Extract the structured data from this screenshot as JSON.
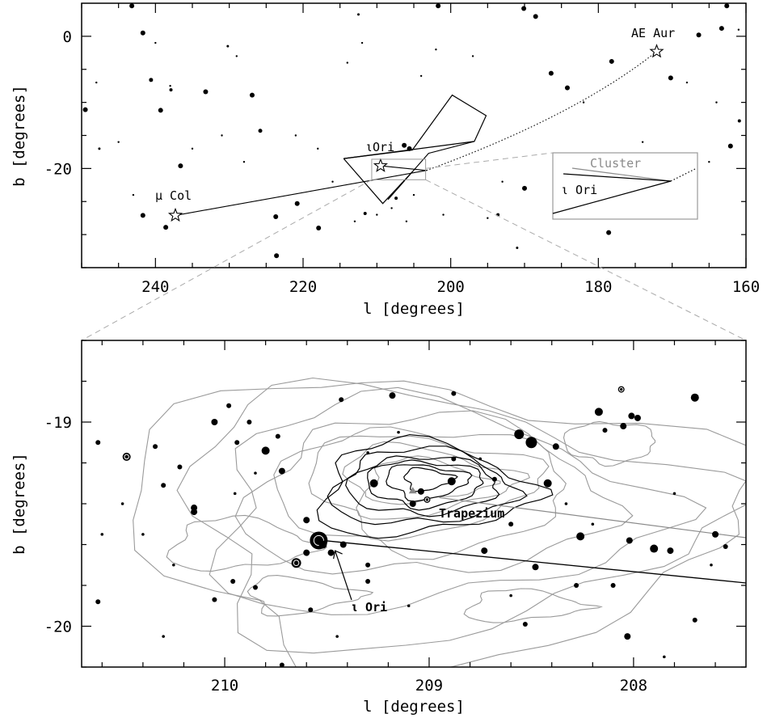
{
  "chart_data": [
    {
      "type": "scatter",
      "panel": "top",
      "xlabel": "l [degrees]",
      "ylabel": "b [degrees]",
      "xlim": [
        250,
        160
      ],
      "ylim": [
        -35,
        5
      ],
      "xticks": [
        240,
        220,
        200,
        180,
        160
      ],
      "yticks": [
        0,
        -20
      ],
      "labels": {
        "ae_aur": "AE Aur",
        "mu_col": "μ Col",
        "iota_ori": "ιOri",
        "inset_cluster": "Cluster",
        "inset_iota_ori": "ι Ori"
      },
      "runaway_stars": [
        {
          "name": "AE Aur",
          "l": 172.1,
          "b": -2.3
        },
        {
          "name": "μ Col",
          "l": 237.3,
          "b": -27.1
        },
        {
          "name": "ιOri",
          "l": 209.5,
          "b": -19.6
        }
      ],
      "orion_constellation": [
        {
          "l": 214.5,
          "b": -18.5
        },
        {
          "l": 205.2,
          "b": -17.2
        },
        {
          "l": 199.8,
          "b": -8.9
        },
        {
          "l": 195.2,
          "b": -12.0
        },
        {
          "l": 196.8,
          "b": -15.9
        },
        {
          "l": 203.0,
          "b": -17.7
        },
        {
          "l": 205.2,
          "b": -20.5
        },
        {
          "l": 209.2,
          "b": -25.3
        },
        {
          "l": 214.5,
          "b": -18.5
        }
      ],
      "stars": [
        {
          "l": 243.2,
          "b": 4.6,
          "s": 3
        },
        {
          "l": 241.7,
          "b": 0.5,
          "s": 3
        },
        {
          "l": 240.6,
          "b": -6.6,
          "s": 2.5
        },
        {
          "l": 239.3,
          "b": -11.2,
          "s": 3
        },
        {
          "l": 237.9,
          "b": -8.1,
          "s": 2
        },
        {
          "l": 236.6,
          "b": -19.6,
          "s": 3
        },
        {
          "l": 230.2,
          "b": -1.5,
          "s": 1.5
        },
        {
          "l": 226.9,
          "b": -8.9,
          "s": 3
        },
        {
          "l": 225.8,
          "b": -14.3,
          "s": 2.5
        },
        {
          "l": 223.6,
          "b": -33.2,
          "s": 3
        },
        {
          "l": 223.7,
          "b": -27.3,
          "s": 3
        },
        {
          "l": 220.8,
          "b": -25.3,
          "s": 3
        },
        {
          "l": 217.9,
          "b": -29.0,
          "s": 3
        },
        {
          "l": 212.5,
          "b": 3.3,
          "s": 1.5
        },
        {
          "l": 201.7,
          "b": 4.6,
          "s": 3
        },
        {
          "l": 190.1,
          "b": 4.2,
          "s": 3
        },
        {
          "l": 188.5,
          "b": 3.0,
          "s": 3
        },
        {
          "l": 186.4,
          "b": -5.6,
          "s": 3
        },
        {
          "l": 184.2,
          "b": -7.8,
          "s": 3
        },
        {
          "l": 190.0,
          "b": -23.0,
          "s": 3
        },
        {
          "l": 178.6,
          "b": -29.7,
          "s": 3
        },
        {
          "l": 178.2,
          "b": -3.8,
          "s": 3
        },
        {
          "l": 170.2,
          "b": -6.3,
          "s": 3
        },
        {
          "l": 166.4,
          "b": 0.2,
          "s": 3
        },
        {
          "l": 163.3,
          "b": 1.2,
          "s": 3
        },
        {
          "l": 162.6,
          "b": 4.6,
          "s": 3
        },
        {
          "l": 162.1,
          "b": -16.6,
          "s": 3
        },
        {
          "l": 249.5,
          "b": -11.1,
          "s": 3
        },
        {
          "l": 238.6,
          "b": -28.9,
          "s": 3
        },
        {
          "l": 241.7,
          "b": -27.1,
          "s": 3
        },
        {
          "l": 205.6,
          "b": -17.0,
          "s": 3
        },
        {
          "l": 206.3,
          "b": -16.5,
          "s": 3
        },
        {
          "l": 207.4,
          "b": -24.5,
          "s": 2
        },
        {
          "l": 211.6,
          "b": -26.8,
          "s": 2
        },
        {
          "l": 193.6,
          "b": -27.0,
          "s": 2
        },
        {
          "l": 191.0,
          "b": -32.0,
          "s": 1.5
        },
        {
          "l": 160.9,
          "b": -12.8,
          "s": 2
        },
        {
          "l": 233.2,
          "b": -8.4,
          "s": 3
        },
        {
          "l": 247.6,
          "b": -17.0,
          "s": 1.5
        }
      ],
      "inset_box": {
        "l1": 186.1,
        "b1": -18.1,
        "l2": 167.5,
        "b2": -27.8
      }
    },
    {
      "type": "scatter",
      "panel": "bottom",
      "xlabel": "l [degrees]",
      "ylabel": "b [degrees]",
      "xlim": [
        210.7,
        207.45
      ],
      "ylim": [
        -20.2,
        -18.6
      ],
      "xticks": [
        210,
        209,
        208
      ],
      "yticks": [
        -19,
        -20
      ],
      "labels": {
        "trapezium": "Trapezium",
        "iota_ori": "ι Ori"
      },
      "iota_ori_position": {
        "l": 209.52,
        "b": -19.58
      },
      "trapezium_position": {
        "l": 209.01,
        "b": -19.38
      },
      "stars": [
        {
          "l": 210.48,
          "b": -19.17,
          "s": 5,
          "ring": true
        },
        {
          "l": 210.05,
          "b": -19.0,
          "s": 4
        },
        {
          "l": 210.78,
          "b": -19.32,
          "s": 4
        },
        {
          "l": 209.98,
          "b": -18.92,
          "s": 3
        },
        {
          "l": 209.88,
          "b": -19.0,
          "s": 3
        },
        {
          "l": 209.8,
          "b": -19.14,
          "s": 5
        },
        {
          "l": 209.72,
          "b": -19.24,
          "s": 4
        },
        {
          "l": 209.74,
          "b": -19.07,
          "s": 3
        },
        {
          "l": 209.43,
          "b": -18.89,
          "s": 3
        },
        {
          "l": 209.18,
          "b": -18.87,
          "s": 4
        },
        {
          "l": 208.88,
          "b": -18.86,
          "s": 3
        },
        {
          "l": 208.56,
          "b": -19.06,
          "s": 6
        },
        {
          "l": 208.5,
          "b": -19.1,
          "s": 7
        },
        {
          "l": 208.38,
          "b": -19.12,
          "s": 4
        },
        {
          "l": 208.17,
          "b": -18.95,
          "s": 5
        },
        {
          "l": 208.06,
          "b": -18.84,
          "s": 4,
          "ring": true
        },
        {
          "l": 207.7,
          "b": -18.88,
          "s": 5
        },
        {
          "l": 208.05,
          "b": -19.02,
          "s": 4
        },
        {
          "l": 208.01,
          "b": -18.97,
          "s": 4
        },
        {
          "l": 207.98,
          "b": -18.98,
          "s": 4
        },
        {
          "l": 208.14,
          "b": -19.04,
          "s": 3
        },
        {
          "l": 208.42,
          "b": -19.3,
          "s": 5
        },
        {
          "l": 208.68,
          "b": -19.28,
          "s": 3
        },
        {
          "l": 208.89,
          "b": -19.29,
          "s": 5
        },
        {
          "l": 209.04,
          "b": -19.34,
          "s": 4
        },
        {
          "l": 209.08,
          "b": -19.4,
          "s": 4
        },
        {
          "l": 209.01,
          "b": -19.38,
          "s": 4,
          "ring": true
        },
        {
          "l": 209.27,
          "b": -19.3,
          "s": 5
        },
        {
          "l": 210.15,
          "b": -19.42,
          "s": 4
        },
        {
          "l": 210.15,
          "b": -19.44,
          "s": 4
        },
        {
          "l": 209.6,
          "b": -19.48,
          "s": 4
        },
        {
          "l": 209.54,
          "b": -19.58,
          "s": 11,
          "ring": true
        },
        {
          "l": 209.52,
          "b": -19.6,
          "s": 5
        },
        {
          "l": 209.65,
          "b": -19.69,
          "s": 6,
          "ring": true
        },
        {
          "l": 209.6,
          "b": -19.64,
          "s": 4
        },
        {
          "l": 209.48,
          "b": -19.64,
          "s": 4
        },
        {
          "l": 209.42,
          "b": -19.6,
          "s": 4
        },
        {
          "l": 209.3,
          "b": -19.78,
          "s": 3
        },
        {
          "l": 208.73,
          "b": -19.63,
          "s": 4
        },
        {
          "l": 208.26,
          "b": -19.56,
          "s": 5
        },
        {
          "l": 208.02,
          "b": -19.58,
          "s": 4
        },
        {
          "l": 207.9,
          "b": -19.62,
          "s": 5
        },
        {
          "l": 207.82,
          "b": -19.63,
          "s": 4
        },
        {
          "l": 207.6,
          "b": -19.55,
          "s": 4
        },
        {
          "l": 207.55,
          "b": -19.61,
          "s": 3
        },
        {
          "l": 208.48,
          "b": -19.71,
          "s": 4
        },
        {
          "l": 208.28,
          "b": -19.8,
          "s": 3
        },
        {
          "l": 208.1,
          "b": -19.8,
          "s": 3
        },
        {
          "l": 208.03,
          "b": -20.05,
          "s": 4
        },
        {
          "l": 207.7,
          "b": -19.97,
          "s": 3
        },
        {
          "l": 209.58,
          "b": -19.92,
          "s": 3
        },
        {
          "l": 209.96,
          "b": -19.78,
          "s": 3
        },
        {
          "l": 210.05,
          "b": -19.87,
          "s": 3
        },
        {
          "l": 210.62,
          "b": -19.88,
          "s": 3
        },
        {
          "l": 210.62,
          "b": -19.1,
          "s": 3
        },
        {
          "l": 210.3,
          "b": -19.31,
          "s": 3
        },
        {
          "l": 210.34,
          "b": -19.12,
          "s": 3
        },
        {
          "l": 210.22,
          "b": -19.22,
          "s": 3
        },
        {
          "l": 209.85,
          "b": -19.81,
          "s": 3
        },
        {
          "l": 209.72,
          "b": -20.19,
          "s": 3
        },
        {
          "l": 209.94,
          "b": -19.1,
          "s": 3
        },
        {
          "l": 208.53,
          "b": -19.99,
          "s": 3
        },
        {
          "l": 208.6,
          "b": -19.5,
          "s": 3
        },
        {
          "l": 209.3,
          "b": -19.7,
          "s": 3
        },
        {
          "l": 208.88,
          "b": -19.18,
          "s": 3
        },
        {
          "l": 210.85,
          "b": -18.92,
          "s": 3
        }
      ],
      "contours_gray": [
        {
          "l": 209.0,
          "b": -19.29,
          "rl": 0.3,
          "rb": 0.1
        },
        {
          "l": 209.0,
          "b": -19.29,
          "rl": 0.42,
          "rb": 0.16
        },
        {
          "l": 209.0,
          "b": -19.3,
          "rl": 0.56,
          "rb": 0.23
        },
        {
          "l": 208.98,
          "b": -19.33,
          "rl": 0.7,
          "rb": 0.3
        },
        {
          "l": 208.95,
          "b": -19.37,
          "rl": 0.88,
          "rb": 0.38
        },
        {
          "l": 208.95,
          "b": -19.42,
          "rl": 1.1,
          "rb": 0.48
        },
        {
          "l": 208.9,
          "b": -19.46,
          "rl": 1.3,
          "rb": 0.58
        },
        {
          "l": 208.9,
          "b": -19.48,
          "rl": 1.48,
          "rb": 0.68
        }
      ],
      "contours_black": [
        {
          "l": 209.0,
          "b": -19.28,
          "rl": 0.12,
          "rb": 0.05
        },
        {
          "l": 209.0,
          "b": -19.29,
          "rl": 0.2,
          "rb": 0.08
        },
        {
          "l": 209.0,
          "b": -19.3,
          "rl": 0.28,
          "rb": 0.11
        },
        {
          "l": 209.0,
          "b": -19.31,
          "rl": 0.36,
          "rb": 0.14
        },
        {
          "l": 209.0,
          "b": -19.32,
          "rl": 0.44,
          "rb": 0.18
        },
        {
          "l": 209.0,
          "b": -19.33,
          "rl": 0.52,
          "rb": 0.22
        }
      ]
    }
  ]
}
